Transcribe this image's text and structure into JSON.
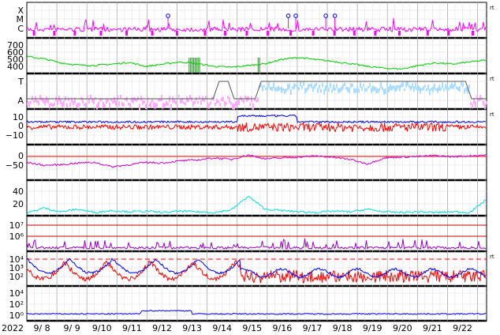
{
  "chart_data": {
    "type": "line",
    "start_year": "2022",
    "x_tick_labels": [
      "9/ 8",
      "9/ 9",
      "9/10",
      "9/11",
      "9/12",
      "9/13",
      "9/14",
      "9/15",
      "9/16",
      "9/17",
      "9/18",
      "9/19",
      "9/20",
      "9/21",
      "9/22"
    ],
    "grid": true,
    "panels": [
      {
        "id": "xray-class",
        "tick_labels": [
          "X",
          "M",
          "C"
        ],
        "right_label": "rt",
        "series_colors": [
          "#ff00ff",
          "#0000ff"
        ],
        "flare_marker_days": [
          4.7,
          8.7,
          8.95,
          9.95,
          10.25
        ]
      },
      {
        "id": "speed",
        "tick_labels": [
          "700",
          "600",
          "500",
          "400"
        ],
        "ylim": [
          350,
          750
        ],
        "series_color": "#00cc00",
        "values": [
          540,
          515,
          470,
          445,
          440,
          455,
          475,
          430,
          455,
          480,
          460,
          430,
          420,
          440,
          460,
          510,
          530,
          505,
          485,
          460,
          430,
          410,
          400,
          440,
          470,
          455,
          480,
          500
        ]
      },
      {
        "id": "polarity",
        "tick_labels": [
          "T",
          "A"
        ],
        "right_label": "rt",
        "series_colors": [
          "#ffaaff",
          "#aaddff",
          "#555555"
        ]
      },
      {
        "id": "imf-bz-bt",
        "tick_labels": [
          "10",
          "0",
          "−10"
        ],
        "ylim": [
          -18,
          18
        ],
        "right_label": "rt",
        "series_colors": [
          "#0000ff",
          "#ff0000"
        ]
      },
      {
        "id": "dst",
        "tick_labels": [
          "0",
          "−50"
        ],
        "ylim": [
          -80,
          40
        ],
        "series_color": "#cc00cc",
        "values": [
          -20,
          -30,
          -28,
          -22,
          -20,
          -35,
          -28,
          -20,
          -22,
          -15,
          -12,
          -5,
          -10,
          5,
          -8,
          -5,
          -2,
          2,
          -3,
          -10,
          -25,
          -5,
          -2,
          0,
          3,
          -1,
          2,
          5
        ]
      },
      {
        "id": "kp",
        "tick_labels": [
          "40",
          "20"
        ],
        "ylim": [
          0,
          55
        ],
        "series_color": "#00dddd",
        "values": [
          4,
          12,
          6,
          10,
          5,
          8,
          6,
          7,
          5,
          7,
          6,
          5,
          9,
          30,
          10,
          8,
          6,
          5,
          7,
          6,
          10,
          6,
          5,
          6,
          5,
          6,
          5,
          25
        ]
      },
      {
        "id": "electron-flux",
        "tick_labels": [
          "10⁷",
          "10⁶"
        ],
        "series_color": "#9900cc"
      },
      {
        "id": "proton-flux",
        "tick_labels": [
          "10⁴",
          "10³",
          "10²"
        ],
        "right_label": "rt",
        "series_colors": [
          "#0000ff",
          "#ff0000"
        ]
      },
      {
        "id": "particle-flux",
        "tick_labels": [
          "10⁴",
          "10²",
          "10⁰"
        ],
        "series_color": "#0000ff"
      }
    ]
  }
}
